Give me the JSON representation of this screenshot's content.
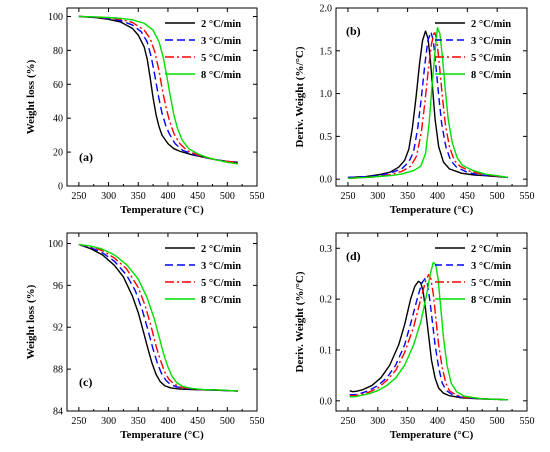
{
  "chart_data": [
    {
      "type": "line",
      "panel_label": "(a)",
      "xlabel": "Temperature (°C)",
      "ylabel": "Weight loss (%)",
      "xlim": [
        230,
        550
      ],
      "ylim": [
        0,
        105
      ],
      "xticks": [
        250,
        300,
        350,
        400,
        450,
        500,
        550
      ],
      "yticks": [
        0,
        20,
        40,
        60,
        80,
        100
      ],
      "legend_position": "top-right",
      "series": [
        {
          "name": "2 °C/min",
          "color": "#000000",
          "dash": "solid",
          "x": [
            250,
            280,
            300,
            320,
            340,
            350,
            360,
            365,
            370,
            375,
            380,
            385,
            390,
            400,
            410,
            420,
            440,
            460,
            480,
            500,
            518
          ],
          "y": [
            100,
            99.3,
            98.3,
            96.8,
            93,
            89,
            82,
            75,
            64,
            52,
            42,
            35,
            30,
            25,
            22,
            20.5,
            18.5,
            17,
            15.5,
            14.5,
            14
          ]
        },
        {
          "name": "3 °C/min",
          "color": "#0000ff",
          "dash": "8,4",
          "x": [
            250,
            280,
            300,
            320,
            340,
            355,
            365,
            372,
            378,
            384,
            390,
            396,
            402,
            412,
            425,
            440,
            460,
            480,
            500,
            518
          ],
          "y": [
            100,
            99.5,
            98.8,
            97.6,
            95,
            91,
            85,
            76,
            65,
            53,
            43,
            36,
            31,
            25,
            21,
            19,
            17,
            15.5,
            14.5,
            14
          ]
        },
        {
          "name": "5 °C/min",
          "color": "#ff0000",
          "dash": "9,3,2,3",
          "x": [
            250,
            280,
            300,
            320,
            340,
            360,
            370,
            378,
            385,
            391,
            397,
            403,
            410,
            420,
            432,
            445,
            460,
            480,
            500,
            518
          ],
          "y": [
            100,
            99.6,
            99.1,
            98.3,
            96.5,
            92,
            87,
            79,
            68,
            56,
            46,
            38,
            31,
            25,
            21,
            19,
            17,
            15.5,
            14.5,
            14
          ]
        },
        {
          "name": "8 °C/min",
          "color": "#00dd00",
          "dash": "solid",
          "x": [
            250,
            280,
            300,
            320,
            340,
            360,
            375,
            385,
            392,
            398,
            404,
            410,
            416,
            424,
            435,
            450,
            465,
            480,
            500,
            518
          ],
          "y": [
            100,
            99.7,
            99.4,
            98.9,
            98,
            96,
            92,
            85,
            76,
            65,
            53,
            42,
            34,
            27,
            22,
            19,
            17,
            15.5,
            14,
            13
          ]
        }
      ]
    },
    {
      "type": "line",
      "panel_label": "(b)",
      "xlabel": "Temperature (°C)",
      "ylabel": "Deriv. Weight (%/°C)",
      "xlim": [
        230,
        550
      ],
      "ylim": [
        -0.08,
        2.0
      ],
      "xticks": [
        250,
        300,
        350,
        400,
        450,
        500,
        550
      ],
      "yticks": [
        0.0,
        0.5,
        1.0,
        1.5,
        2.0
      ],
      "ytick_labels": [
        "0.0",
        "0.5",
        "1.0",
        "1.5",
        "2.0"
      ],
      "legend_position": "top-right",
      "series": [
        {
          "name": "2 °C/min",
          "color": "#000000",
          "dash": "solid",
          "x": [
            250,
            280,
            300,
            320,
            335,
            345,
            352,
            358,
            364,
            370,
            375,
            380,
            384,
            388,
            392,
            396,
            402,
            410,
            420,
            440,
            460,
            480,
            500,
            518
          ],
          "y": [
            0.02,
            0.03,
            0.05,
            0.08,
            0.14,
            0.22,
            0.35,
            0.6,
            0.95,
            1.35,
            1.62,
            1.73,
            1.65,
            1.4,
            1.05,
            0.7,
            0.38,
            0.2,
            0.12,
            0.07,
            0.05,
            0.04,
            0.03,
            0.02
          ]
        },
        {
          "name": "3 °C/min",
          "color": "#0000ff",
          "dash": "7,4",
          "x": [
            250,
            280,
            300,
            320,
            340,
            352,
            360,
            367,
            373,
            379,
            384,
            389,
            393,
            397,
            402,
            407,
            414,
            422,
            432,
            450,
            470,
            490,
            518
          ],
          "y": [
            0.02,
            0.03,
            0.04,
            0.07,
            0.12,
            0.2,
            0.32,
            0.6,
            0.95,
            1.35,
            1.62,
            1.72,
            1.62,
            1.35,
            0.98,
            0.65,
            0.38,
            0.22,
            0.14,
            0.08,
            0.05,
            0.04,
            0.02
          ]
        },
        {
          "name": "5 °C/min",
          "color": "#ff0000",
          "dash": "9,3,2,3",
          "x": [
            250,
            280,
            300,
            320,
            340,
            355,
            365,
            373,
            379,
            385,
            390,
            395,
            399,
            403,
            408,
            413,
            420,
            428,
            438,
            455,
            475,
            495,
            518
          ],
          "y": [
            0.01,
            0.02,
            0.03,
            0.05,
            0.09,
            0.15,
            0.27,
            0.55,
            0.9,
            1.3,
            1.58,
            1.73,
            1.62,
            1.35,
            0.98,
            0.65,
            0.38,
            0.22,
            0.15,
            0.09,
            0.06,
            0.04,
            0.02
          ]
        },
        {
          "name": "8 °C/min",
          "color": "#00dd00",
          "dash": "solid",
          "x": [
            250,
            280,
            300,
            320,
            340,
            360,
            372,
            380,
            386,
            391,
            396,
            400,
            404,
            408,
            413,
            418,
            425,
            433,
            442,
            460,
            480,
            500,
            518
          ],
          "y": [
            0.01,
            0.02,
            0.03,
            0.04,
            0.06,
            0.1,
            0.15,
            0.3,
            0.65,
            1.1,
            1.5,
            1.77,
            1.7,
            1.45,
            1.05,
            0.7,
            0.42,
            0.25,
            0.16,
            0.1,
            0.06,
            0.04,
            0.02
          ]
        }
      ]
    },
    {
      "type": "line",
      "panel_label": "(c)",
      "xlabel": "Temperature (°C)",
      "ylabel": "Weight loss (%)",
      "xlim": [
        230,
        550
      ],
      "ylim": [
        84,
        101
      ],
      "xticks": [
        250,
        300,
        350,
        400,
        450,
        500,
        550
      ],
      "yticks": [
        84,
        88,
        92,
        96,
        100
      ],
      "legend_position": "top-right",
      "series": [
        {
          "name": "2 °C/min",
          "color": "#000000",
          "dash": "solid",
          "x": [
            250,
            270,
            290,
            310,
            325,
            340,
            350,
            360,
            367,
            373,
            380,
            387,
            395,
            405,
            420,
            440,
            470,
            500,
            518
          ],
          "y": [
            99.9,
            99.5,
            98.9,
            97.9,
            96.8,
            95.0,
            93.4,
            91.3,
            89.8,
            88.6,
            87.5,
            86.8,
            86.4,
            86.2,
            86.1,
            86.05,
            86.0,
            85.95,
            85.9
          ]
        },
        {
          "name": "3 °C/min",
          "color": "#0000ff",
          "dash": "8,4",
          "x": [
            250,
            270,
            290,
            310,
            330,
            345,
            357,
            367,
            375,
            382,
            389,
            397,
            405,
            415,
            430,
            450,
            480,
            518
          ],
          "y": [
            99.9,
            99.6,
            99.1,
            98.3,
            97.0,
            95.5,
            93.6,
            91.6,
            89.9,
            88.6,
            87.6,
            86.9,
            86.5,
            86.3,
            86.15,
            86.05,
            86.0,
            85.9
          ]
        },
        {
          "name": "5 °C/min",
          "color": "#ff0000",
          "dash": "9,3,2,3",
          "x": [
            250,
            270,
            290,
            310,
            330,
            350,
            362,
            372,
            380,
            387,
            394,
            402,
            410,
            420,
            435,
            455,
            485,
            518
          ],
          "y": [
            99.9,
            99.7,
            99.3,
            98.6,
            97.6,
            95.8,
            94.0,
            92.0,
            90.2,
            88.9,
            87.8,
            87.0,
            86.6,
            86.3,
            86.15,
            86.05,
            86.0,
            85.9
          ]
        },
        {
          "name": "8 °C/min",
          "color": "#00dd00",
          "dash": "solid",
          "x": [
            250,
            270,
            290,
            310,
            330,
            350,
            365,
            377,
            386,
            393,
            400,
            407,
            415,
            425,
            440,
            460,
            490,
            518
          ],
          "y": [
            99.9,
            99.75,
            99.45,
            98.9,
            98.0,
            96.6,
            94.8,
            92.8,
            90.9,
            89.4,
            88.2,
            87.3,
            86.7,
            86.35,
            86.15,
            86.05,
            86.0,
            85.9
          ]
        }
      ]
    },
    {
      "type": "line",
      "panel_label": "(d)",
      "xlabel": "Temperature (°C)",
      "ylabel": "Deriv. Weight (%/°C)",
      "xlim": [
        230,
        550
      ],
      "ylim": [
        -0.02,
        0.33
      ],
      "xticks": [
        250,
        300,
        350,
        400,
        450,
        500,
        550
      ],
      "yticks": [
        0.0,
        0.1,
        0.2,
        0.3
      ],
      "ytick_labels": [
        "0.0",
        "0.1",
        "0.2",
        "0.3"
      ],
      "legend_position": "top-right",
      "series": [
        {
          "name": "2 °C/min",
          "color": "#000000",
          "dash": "solid",
          "x": [
            253,
            258,
            265,
            275,
            290,
            305,
            320,
            335,
            345,
            355,
            362,
            368,
            372,
            376,
            380,
            385,
            390,
            396,
            402,
            410,
            420,
            440,
            470,
            500,
            518
          ],
          "y": [
            0.02,
            0.018,
            0.019,
            0.022,
            0.03,
            0.045,
            0.07,
            0.11,
            0.15,
            0.2,
            0.225,
            0.235,
            0.232,
            0.215,
            0.18,
            0.13,
            0.08,
            0.045,
            0.025,
            0.015,
            0.01,
            0.006,
            0.004,
            0.003,
            0.002
          ]
        },
        {
          "name": "3 °C/min",
          "color": "#0000ff",
          "dash": "7,4",
          "x": [
            253,
            260,
            270,
            285,
            300,
            315,
            330,
            345,
            357,
            367,
            374,
            379,
            383,
            387,
            391,
            396,
            402,
            408,
            415,
            425,
            440,
            470,
            518
          ],
          "y": [
            0.012,
            0.012,
            0.014,
            0.02,
            0.03,
            0.045,
            0.07,
            0.11,
            0.16,
            0.205,
            0.232,
            0.24,
            0.23,
            0.2,
            0.16,
            0.11,
            0.065,
            0.035,
            0.02,
            0.012,
            0.007,
            0.004,
            0.002
          ]
        },
        {
          "name": "5 °C/min",
          "color": "#ff0000",
          "dash": "9,3,2,3",
          "x": [
            253,
            260,
            270,
            285,
            300,
            315,
            330,
            345,
            360,
            372,
            380,
            385,
            389,
            393,
            397,
            402,
            408,
            414,
            420,
            430,
            445,
            475,
            518
          ],
          "y": [
            0.01,
            0.01,
            0.012,
            0.017,
            0.025,
            0.04,
            0.06,
            0.095,
            0.145,
            0.2,
            0.235,
            0.248,
            0.24,
            0.21,
            0.165,
            0.11,
            0.065,
            0.035,
            0.02,
            0.012,
            0.007,
            0.004,
            0.002
          ]
        },
        {
          "name": "8 °C/min",
          "color": "#00dd00",
          "dash": "solid",
          "x": [
            253,
            260,
            270,
            285,
            300,
            315,
            330,
            345,
            360,
            372,
            382,
            388,
            393,
            397,
            401,
            405,
            410,
            416,
            423,
            432,
            445,
            475,
            518
          ],
          "y": [
            0.008,
            0.008,
            0.01,
            0.014,
            0.02,
            0.03,
            0.045,
            0.07,
            0.11,
            0.155,
            0.21,
            0.25,
            0.272,
            0.268,
            0.24,
            0.19,
            0.125,
            0.07,
            0.035,
            0.018,
            0.009,
            0.004,
            0.002
          ]
        }
      ]
    }
  ]
}
